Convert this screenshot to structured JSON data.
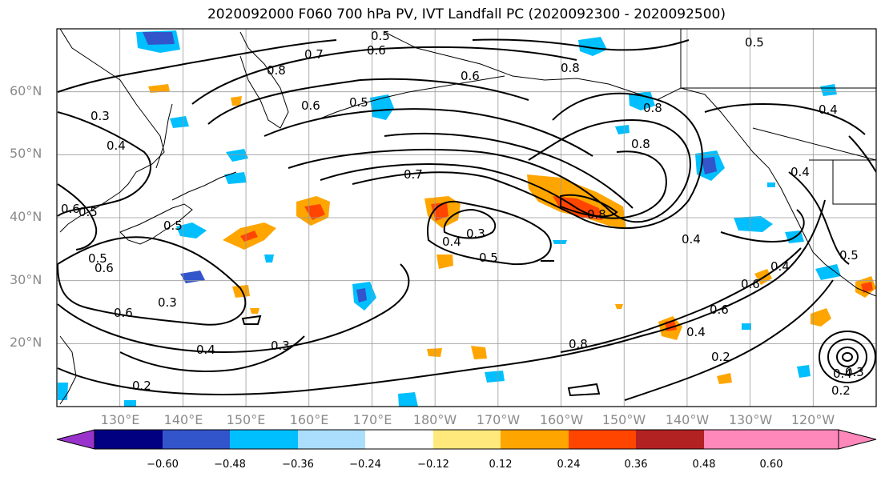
{
  "title": "2020092000 F060 700 hPa PV, IVT Landfall PC (2020092300 - 2020092500)",
  "map": {
    "projection": "equirectangular",
    "extent": {
      "lon_min": 120,
      "lon_max": 250,
      "lat_min": 10,
      "lat_max": 70
    },
    "lat_labels": [
      "60°N",
      "50°N",
      "40°N",
      "30°N",
      "20°N"
    ],
    "lon_labels": [
      "130°E",
      "140°E",
      "150°E",
      "160°E",
      "170°E",
      "180°W",
      "170°W",
      "160°W",
      "150°W",
      "140°W",
      "130°W",
      "120°W"
    ],
    "grid_color": "#999999"
  },
  "contour_labels": [
    "0.5",
    "0.5",
    "0.6",
    "0.7",
    "0.8",
    "0.6",
    "0.8",
    "0.4",
    "0.5",
    "0.6",
    "0.8",
    "0.8",
    "0.3",
    "0.4",
    "0.5",
    "0.6",
    "0.5",
    "0.7",
    "0.3",
    "0.4",
    "0.5",
    "0.8",
    "0.4",
    "0.6",
    "0.5",
    "0.4",
    "0.6",
    "0.6",
    "0.3",
    "0.4",
    "0.3",
    "0.2",
    "0.8",
    "0.4",
    "0.2",
    "0.6",
    "0.2",
    "0.4",
    "0.5",
    "0.3",
    "0.4"
  ],
  "colorbar": {
    "colors": [
      "#9933cc",
      "#000080",
      "#3355cc",
      "#00bfff",
      "#aadefc",
      "#ffffff",
      "#ffe87c",
      "#ffa500",
      "#ff4500",
      "#b22222",
      "#ff88bb"
    ],
    "ticks": [
      "−0.60",
      "−0.48",
      "−0.36",
      "−0.24",
      "−0.12",
      "0.12",
      "0.24",
      "0.36",
      "0.48",
      "0.60"
    ]
  }
}
